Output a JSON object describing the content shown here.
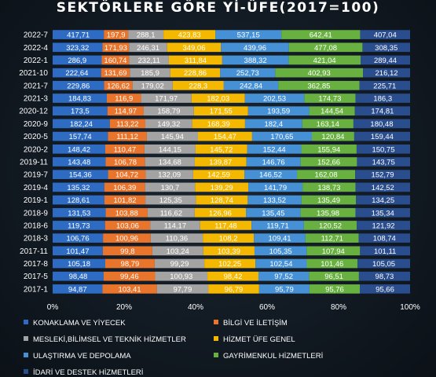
{
  "chart_data": {
    "type": "bar",
    "orientation": "horizontal",
    "stacked": "percent",
    "title": "SEKTÖRLERE GÖRE Yİ-ÜFE(2017=100)",
    "categories": [
      "2022-7",
      "2022-4",
      "2022-1",
      "2021-10",
      "2021-7",
      "2021-3",
      "2020-12",
      "2020-9",
      "2020-5",
      "2020-2",
      "2019-11",
      "2019-7",
      "2019-4",
      "2019-1",
      "2018-9",
      "2018-6",
      "2018-3",
      "2017-11",
      "2017-8",
      "2017-5",
      "2017-1"
    ],
    "x_ticks": [
      "0%",
      "20%",
      "40%",
      "60%",
      "80%",
      "100%"
    ],
    "grid": false,
    "legend_position": "bottom",
    "series": [
      {
        "name": "KONAKLAMA VE YİYECEK",
        "color": "#2e6cc4",
        "values": [
          417.71,
          323.32,
          286.9,
          222.64,
          229.86,
          184.83,
          173.5,
          182.24,
          157.74,
          148.42,
          143.48,
          154.36,
          135.32,
          128.61,
          131.53,
          119.73,
          106.76,
          101.47,
          105.18,
          98.48,
          94.87
        ]
      },
      {
        "name": "BİLGİ VE İLETİŞİM",
        "color": "#e9742b",
        "values": [
          197.9,
          171.93,
          160.74,
          131.69,
          126.62,
          116.9,
          114.97,
          113.22,
          111.12,
          110.47,
          106.78,
          104.72,
          106.39,
          101.82,
          103.88,
          103.06,
          100.96,
          99.8,
          98.79,
          99.46,
          103.41
        ]
      },
      {
        "name": "MESLEKİ,BİLİMSEL VE TEKNİK HİZMETLER",
        "color": "#a3a3a3",
        "values": [
          288.1,
          246.31,
          232.11,
          185.9,
          179.02,
          171.97,
          158.79,
          149.32,
          145.94,
          144.15,
          134.68,
          132.09,
          130.7,
          125.35,
          116.62,
          114.17,
          110.36,
          103.24,
          99.29,
          100.93,
          97.79
        ]
      },
      {
        "name": "HİZMET ÜFE GENEL",
        "color": "#f5b800",
        "values": [
          423.83,
          349.06,
          311.84,
          228.86,
          228.3,
          182.03,
          171.55,
          168.39,
          154.47,
          145.72,
          139.87,
          142.59,
          139.29,
          128.74,
          126.96,
          117.48,
          108.2,
          103.39,
          102.25,
          98.42,
          96.79
        ]
      },
      {
        "name": "ULAŞTIRMA VE DEPOLAMA",
        "color": "#4690d6",
        "values": [
          537.15,
          439.96,
          388.32,
          252.73,
          242.84,
          202.53,
          193.59,
          182.4,
          170.65,
          152.44,
          146.76,
          146.52,
          141.79,
          133.52,
          135.45,
          119.71,
          109.41,
          105.35,
          102.54,
          97.52,
          95.79
        ]
      },
      {
        "name": "GAYRİMENKUL HİZMETLERİ",
        "color": "#68b040",
        "values": [
          642.41,
          477.08,
          421.04,
          402.93,
          362.85,
          174.73,
          144.54,
          163.14,
          120.84,
          155.94,
          152.66,
          162.08,
          138.73,
          135.49,
          135.98,
          120.52,
          112.71,
          107.94,
          101.46,
          96.51,
          95.76
        ]
      },
      {
        "name": "İDARİ VE DESTEK HİZMETLERİ",
        "color": "#2a4d8e",
        "values": [
          407.04,
          308.35,
          289.44,
          216.12,
          225.71,
          186.3,
          174.81,
          180.48,
          159.44,
          150.75,
          143.75,
          152.79,
          142.52,
          134.25,
          135.34,
          121.92,
          108.74,
          101.11,
          105.05,
          98.73,
          95.66
        ]
      }
    ]
  }
}
